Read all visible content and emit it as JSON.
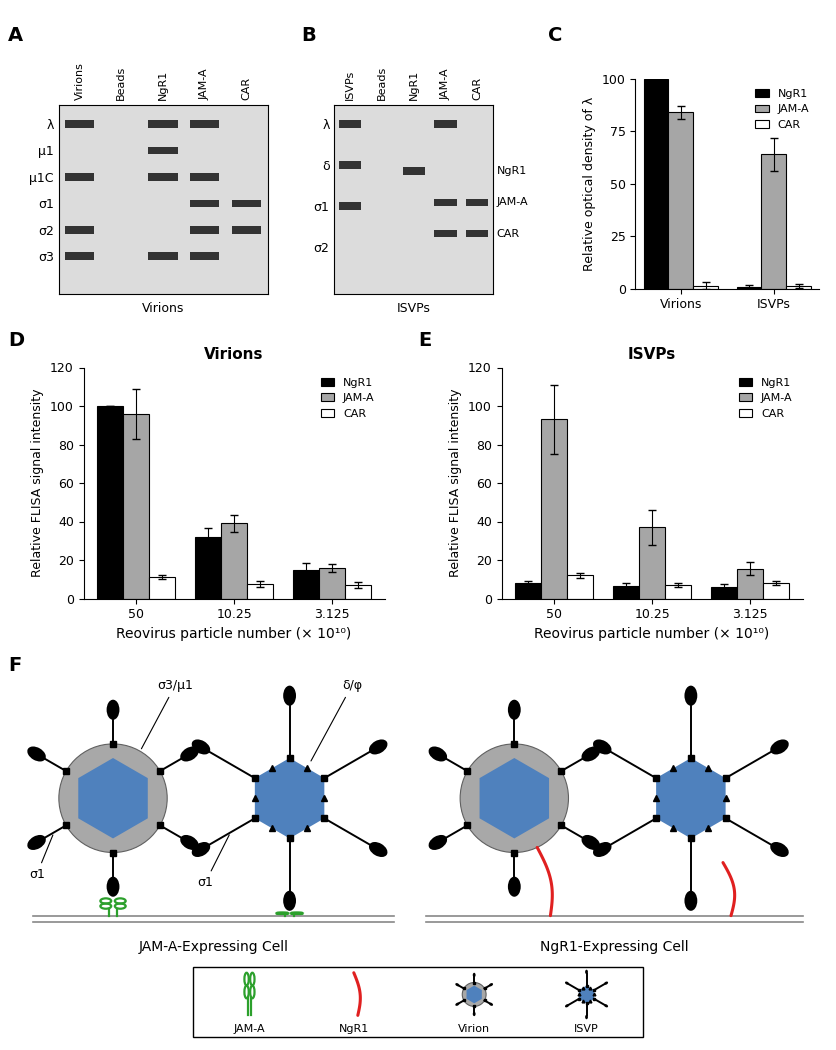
{
  "panel_labels": [
    "A",
    "B",
    "C",
    "D",
    "E",
    "F"
  ],
  "gels": [
    {
      "lanes": [
        "Virions",
        "Beads",
        "NgR1",
        "JAM-A",
        "CAR"
      ],
      "markers": [
        "λ",
        "μ1",
        "μ1C",
        "σ1",
        "σ2",
        "σ3"
      ],
      "right_labels": [],
      "label": "Virions",
      "bands": [
        [
          "λ",
          "μ1C",
          "σ2",
          "σ3"
        ],
        [],
        [
          "λ",
          "μ1",
          "μ1C",
          "σ3"
        ],
        [
          "λ",
          "μ1C",
          "σ1",
          "σ2",
          "σ3"
        ],
        [
          "σ1",
          "σ2"
        ]
      ]
    },
    {
      "lanes": [
        "ISVPs",
        "Beads",
        "NgR1",
        "JAM-A",
        "CAR"
      ],
      "markers": [
        "λ",
        "δ",
        "σ1",
        "σ2"
      ],
      "right_labels": [
        "NgR1",
        "JAM-A",
        "CAR"
      ],
      "label": "ISVPs",
      "bands": [
        [
          "λ",
          "δ",
          "σ1"
        ],
        [],
        [
          "NgR1"
        ],
        [
          "λ",
          "JAM-A",
          "CAR"
        ],
        [
          "JAM-A",
          "CAR"
        ]
      ]
    }
  ],
  "chart_data": [
    {
      "type": "bar",
      "categories": [
        "Virions",
        "ISVPs"
      ],
      "y_label": "Relative optical density of λ",
      "ylim": [
        0,
        100
      ],
      "yticks": [
        0,
        25,
        50,
        75,
        100
      ],
      "legend": "upper right",
      "series": [
        {
          "name": "NgR1",
          "color": "#000000",
          "values": [
            100,
            1
          ],
          "errors": [
            0,
            1
          ]
        },
        {
          "name": "JAM-A",
          "color": "#a6a6a6",
          "values": [
            84,
            64
          ],
          "errors": [
            3,
            8
          ]
        },
        {
          "name": "CAR",
          "color": "#ffffff",
          "values": [
            1.5,
            1.5
          ],
          "errors": [
            1.5,
            1
          ]
        }
      ]
    },
    {
      "type": "bar",
      "title": "Virions",
      "categories": [
        "50",
        "10.25",
        "3.125"
      ],
      "x_label": "Reovirus particle number (× 10¹⁰)",
      "y_label": "Relative FLISA signal intensity",
      "ylim": [
        0,
        120
      ],
      "yticks": [
        0,
        20,
        40,
        60,
        80,
        100,
        120
      ],
      "legend": "upper right",
      "series": [
        {
          "name": "NgR1",
          "color": "#000000",
          "values": [
            100,
            32,
            15
          ],
          "errors": [
            0,
            4.5,
            3.5
          ]
        },
        {
          "name": "JAM-A",
          "color": "#a6a6a6",
          "values": [
            96,
            39,
            16
          ],
          "errors": [
            13,
            4.5,
            2
          ]
        },
        {
          "name": "CAR",
          "color": "#ffffff",
          "values": [
            11,
            7.5,
            7
          ],
          "errors": [
            1,
            1.5,
            1.5
          ]
        }
      ]
    },
    {
      "type": "bar",
      "title": "ISVPs",
      "categories": [
        "50",
        "10.25",
        "3.125"
      ],
      "x_label": "Reovirus particle number (× 10¹⁰)",
      "y_label": "Relative FLISA signal intensity",
      "ylim": [
        0,
        120
      ],
      "yticks": [
        0,
        20,
        40,
        60,
        80,
        100,
        120
      ],
      "legend": "upper right",
      "series": [
        {
          "name": "NgR1",
          "color": "#000000",
          "values": [
            8,
            6.5,
            6
          ],
          "errors": [
            1,
            1.5,
            1.5
          ]
        },
        {
          "name": "JAM-A",
          "color": "#a6a6a6",
          "values": [
            93,
            37,
            15.5
          ],
          "errors": [
            18,
            9,
            3.5
          ]
        },
        {
          "name": "CAR",
          "color": "#ffffff",
          "values": [
            12,
            7,
            8
          ],
          "errors": [
            1.5,
            1,
            1
          ]
        }
      ]
    }
  ],
  "diagram": {
    "outer_capsid_label": "σ3/μ1",
    "isvp_protein_label": "δ/φ",
    "fiber_labels": [
      "σ1",
      "σ1"
    ],
    "cells": [
      "JAM-A-Expressing Cell",
      "NgR1-Expressing Cell"
    ],
    "key_items": [
      "JAM-A",
      "NgR1",
      "Virion",
      "ISVP"
    ]
  }
}
